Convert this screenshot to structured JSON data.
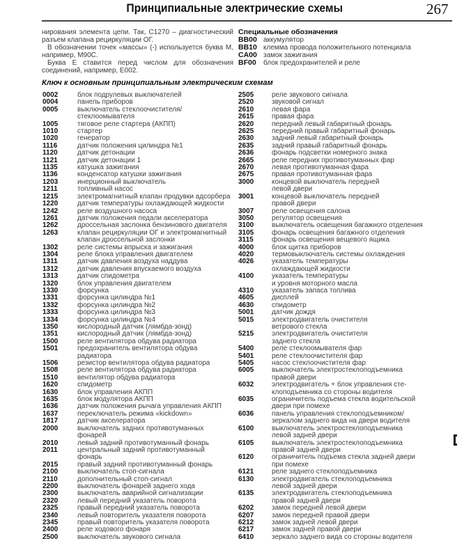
{
  "header": {
    "title": "Принципиальные электрические схемы",
    "page_number": "267"
  },
  "intro": [
    "нирования элемента цепи. Так, С1270 – диагностический разъем клапана рециркуляции ОГ.",
    "В обозначении точек «массы» (-) используется буква М, например, М90С.",
    "Буква Е ставится перед числом для обозначения соединений, например, Е002."
  ],
  "special": {
    "title": "Специальные обозначения",
    "items": [
      {
        "code": "BB00",
        "desc": "аккумулятор"
      },
      {
        "code": "BB10",
        "desc": "клемма провода положительного потенциала"
      },
      {
        "code": "CA00",
        "desc": "замок зажигания"
      },
      {
        "code": "BF00",
        "desc": "блок предохранителей и реле"
      }
    ]
  },
  "key": {
    "title": "Ключ к основным принципиальным электрическим схемам",
    "left": [
      {
        "code": "0002",
        "desc": "блок подрулевых выключателей"
      },
      {
        "code": "0004",
        "desc": "панель приборов"
      },
      {
        "code": "0005",
        "desc": "выключатель стеклоочистителя/\nстеклоомывателя"
      },
      {
        "code": "1005",
        "desc": "тяговое реле стартера (АКПП)"
      },
      {
        "code": "1010",
        "desc": "стартер"
      },
      {
        "code": "1020",
        "desc": "генератор"
      },
      {
        "code": "1116",
        "desc": "датчик положения цилиндра №1"
      },
      {
        "code": "1120",
        "desc": "датчик детонации"
      },
      {
        "code": "1121",
        "desc": "датчик детонации 1"
      },
      {
        "code": "1135",
        "desc": "катушка зажигания"
      },
      {
        "code": "1136",
        "desc": "конденсатор катушки зажигания"
      },
      {
        "code": "1203",
        "desc": "инерционный выключатель"
      },
      {
        "code": "1211",
        "desc": "топливный насос"
      },
      {
        "code": "1215",
        "desc": "электромагнитный клапан продувки адсорбера"
      },
      {
        "code": "1220",
        "desc": "датчик температуры охлаждающей жидкости"
      },
      {
        "code": "1242",
        "desc": "реле воздушного насоса"
      },
      {
        "code": "1261",
        "desc": "датчик положения педали акселератора"
      },
      {
        "code": "1262",
        "desc": "дроссельная заслонка бензинового двигателя"
      },
      {
        "code": "1263",
        "desc": "клапан рециркуляции ОГ и электромагнитный\nклапан дроссельной заслонки"
      },
      {
        "code": "1302",
        "desc": "реле системы впрыска и зажигания"
      },
      {
        "code": "1304",
        "desc": "реле блока управления двигателем"
      },
      {
        "code": "1311",
        "desc": "датчик давления воздуха наддува"
      },
      {
        "code": "1312",
        "desc": "датчик давления впускаемого воздуха"
      },
      {
        "code": "1313",
        "desc": "датчик спидометра"
      },
      {
        "code": "1320",
        "desc": "блок управления двигателем"
      },
      {
        "code": "1330",
        "desc": "форсунка"
      },
      {
        "code": "1331",
        "desc": "форсунка цилиндра №1"
      },
      {
        "code": "1332",
        "desc": "форсунка цилиндра №2"
      },
      {
        "code": "1333",
        "desc": "форсунка цилиндра №3"
      },
      {
        "code": "1334",
        "desc": "форсунка цилиндра №4"
      },
      {
        "code": "1350",
        "desc": "кислородный датчик (лямбда-зонд)"
      },
      {
        "code": "1351",
        "desc": "кислородный датчик (лямбда-зонд)"
      },
      {
        "code": "1500",
        "desc": "реле вентилятора обдува радиатора"
      },
      {
        "code": "1501",
        "desc": "предохранитель вентилятора обдува\nрадиатора"
      },
      {
        "code": "1506",
        "desc": "резистор вентилятора обдува радиатора"
      },
      {
        "code": "1508",
        "desc": "реле вентилятора обдува радиатора"
      },
      {
        "code": "1510",
        "desc": "вентилятор обдува радиатора"
      },
      {
        "code": "1620",
        "desc": "спидометр"
      },
      {
        "code": "1630",
        "desc": "блок управления АКПП"
      },
      {
        "code": "1635",
        "desc": "блок модулятора АКПП"
      },
      {
        "code": "1636",
        "desc": "датчик положения рычага управления АКПП"
      },
      {
        "code": "1637",
        "desc": "переключатель режима «kickdown»"
      },
      {
        "code": "1817",
        "desc": "датчик акселератора"
      },
      {
        "code": "2000",
        "desc": "выключатель задних противотуманных\nфонарей"
      },
      {
        "code": "2010",
        "desc": "левый задний противотуманный фонарь"
      },
      {
        "code": "2011",
        "desc": "центральный задний противотуманный\nфонарь"
      },
      {
        "code": "2015",
        "desc": "правый задний противотуманный фонарь"
      },
      {
        "code": "2100",
        "desc": "выключатель стоп-сигнала"
      },
      {
        "code": "2110",
        "desc": "дополнительный стоп-сигнал"
      },
      {
        "code": "2200",
        "desc": "выключатель фонарей заднего хода"
      },
      {
        "code": "2300",
        "desc": "выключатель аварийной сигнализации"
      },
      {
        "code": "2320",
        "desc": "левый передний указатель поворота"
      },
      {
        "code": "2325",
        "desc": "правый передний указатель поворота"
      },
      {
        "code": "2340",
        "desc": "левый повторитель указателя поворота"
      },
      {
        "code": "2345",
        "desc": "правый повторитель указателя поворота"
      },
      {
        "code": "2400",
        "desc": "реле ходового фонаря"
      },
      {
        "code": "2500",
        "desc": "выключатель звукового сигнала"
      }
    ],
    "right": [
      {
        "code": "2505",
        "desc": "реле звукового сигнала"
      },
      {
        "code": "2520",
        "desc": "звуковой сигнал"
      },
      {
        "code": "2610",
        "desc": "левая фара"
      },
      {
        "code": "2615",
        "desc": "правая фара"
      },
      {
        "code": "2620",
        "desc": "передний левый габаритный фонарь"
      },
      {
        "code": "2625",
        "desc": "передний правый габаритный фонарь"
      },
      {
        "code": "2630",
        "desc": "задний левый габаритный фонарь"
      },
      {
        "code": "2635",
        "desc": "задний правый габаритный фонарь"
      },
      {
        "code": "2636",
        "desc": "фонарь подсветки номерного знака"
      },
      {
        "code": "2665",
        "desc": "реле передних противотуманных фар"
      },
      {
        "code": "2670",
        "desc": "левая противотуманная фара"
      },
      {
        "code": "2675",
        "desc": "правая противотуманная фара"
      },
      {
        "code": "3000",
        "desc": "концевой выключатель передней\nлевой двери"
      },
      {
        "code": "3001",
        "desc": "концевой выключатель передней\nправой двери"
      },
      {
        "code": "3007",
        "desc": "реле освещения салона"
      },
      {
        "code": "3050",
        "desc": "регулятор освещения"
      },
      {
        "code": "3100",
        "desc": "выключатель освещения багажного отделения"
      },
      {
        "code": "3105",
        "desc": "фонарь освещения багажного отделения"
      },
      {
        "code": "3115",
        "desc": "фонарь освещения вещевого ящика"
      },
      {
        "code": "4000",
        "desc": "блок щитка приборов"
      },
      {
        "code": "4020",
        "desc": "термовыключатель системы охлаждения"
      },
      {
        "code": "4026",
        "desc": "указатель температуры\nохлаждающей жидкости"
      },
      {
        "code": "4100",
        "desc": "указатель температуры\nи уровня моторного масла"
      },
      {
        "code": "4310",
        "desc": "указатель запаса топлива"
      },
      {
        "code": "4605",
        "desc": "дисплей"
      },
      {
        "code": "4630",
        "desc": "спидометр"
      },
      {
        "code": "5001",
        "desc": "датчик дождя"
      },
      {
        "code": "5015",
        "desc": "электродвигатель очистителя\nветрового стекла"
      },
      {
        "code": "5215",
        "desc": "электродвигатель очистителя\nзаднего стекла"
      },
      {
        "code": "5400",
        "desc": "реле стеклоомывателя фар"
      },
      {
        "code": "5401",
        "desc": "реле стеклоочистителя фар"
      },
      {
        "code": "5405",
        "desc": "насос стеклоочистителя фар"
      },
      {
        "code": "6005",
        "desc": "выключатель электростеклоподъемника\nправой двери"
      },
      {
        "code": "6032",
        "desc": "электродвигатель + блок управления сте-\nклоподъемника со стороны водителя"
      },
      {
        "code": "6035",
        "desc": "ограничитель подъема стекла водительской\nдвери при помехе"
      },
      {
        "code": "6036",
        "desc": "панель управления стеклоподъемником/\nзеркалом заднего вида на двери водителя"
      },
      {
        "code": "6100",
        "desc": "выключатель электростеклоподъемника\nлевой задней двери"
      },
      {
        "code": "6105",
        "desc": "выключатель электростеклоподъемника\nправой задней двери"
      },
      {
        "code": "6120",
        "desc": "ограничитель подъема стекла задней двери\nпри помехе"
      },
      {
        "code": "6121",
        "desc": "реле заднего стеклоподъемника"
      },
      {
        "code": "6130",
        "desc": "электродвигатель стеклоподъемника\nлевой задней двери"
      },
      {
        "code": "6135",
        "desc": "электродвигатель стеклоподъемника\nправой задней двери"
      },
      {
        "code": "6202",
        "desc": "замок передней левой двери"
      },
      {
        "code": "6207",
        "desc": "замок передней правой двери"
      },
      {
        "code": "6212",
        "desc": "замок задней левой двери"
      },
      {
        "code": "6217",
        "desc": "замок задней правой двери"
      },
      {
        "code": "6410",
        "desc": "зеркало заднего вида со стороны водителя"
      }
    ]
  }
}
